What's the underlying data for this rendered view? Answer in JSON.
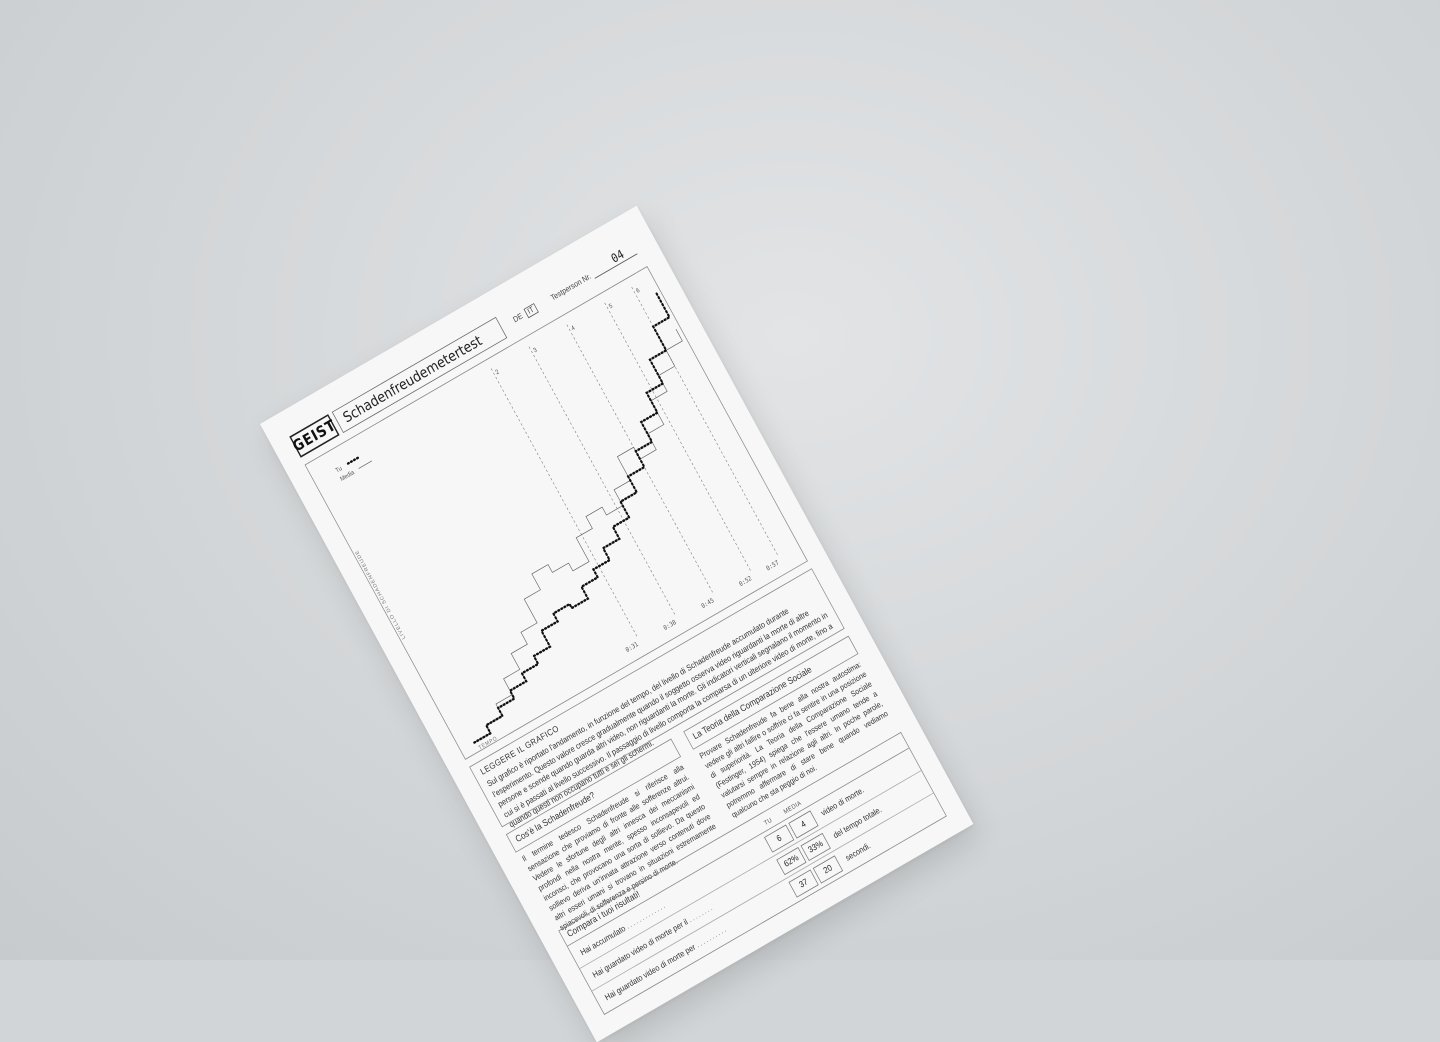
{
  "header": {
    "logo": "GEIST",
    "title": "Schadenfreudemetertest",
    "lang_de": "DE",
    "lang_it": "IT",
    "testperson_label": "Testperson Nr.",
    "testperson_number": "04"
  },
  "chart_data": {
    "type": "line",
    "ylabel": "LIVELLO DI SCHADENFREUDE",
    "xlabel": "TEMPO",
    "legend": [
      {
        "name": "Tu",
        "style": "dotted"
      },
      {
        "name": "Media",
        "style": "solid"
      }
    ],
    "level_markers": [
      {
        "level": "2",
        "time": "0:31"
      },
      {
        "level": "3",
        "time": "0:38"
      },
      {
        "level": "4",
        "time": "0:45"
      },
      {
        "level": "5",
        "time": "0:52"
      },
      {
        "level": "6",
        "time": "0:57"
      }
    ],
    "x": [
      0,
      3,
      6,
      9,
      12,
      15,
      18,
      21,
      24,
      27,
      30,
      33,
      36,
      39,
      42,
      45,
      48,
      51,
      54,
      57,
      60
    ],
    "series": [
      {
        "name": "Tu",
        "values": [
          0.0,
          0.2,
          0.4,
          0.6,
          0.8,
          1.0,
          1.4,
          1.6,
          1.5,
          1.8,
          2.0,
          2.3,
          2.6,
          3.0,
          3.4,
          3.8,
          4.3,
          4.8,
          5.4,
          6.0,
          6.6
        ]
      },
      {
        "name": "Media",
        "values": [
          0.0,
          0.2,
          0.5,
          0.9,
          1.3,
          1.6,
          2.2,
          2.6,
          2.4,
          2.2,
          2.8,
          3.1,
          2.9,
          3.3,
          3.9,
          3.6,
          4.0,
          4.6,
          5.0,
          5.4,
          5.7
        ]
      }
    ]
  },
  "reading": {
    "heading": "LEGGERE IL GRAFICO",
    "text": "Sul grafico è riportato l'andamento, in funzione del tempo, del livello di Schadenfreude accumulato durante l'esperimento. Questo valore cresce gradualmente quando il soggetto osserva video riguardanti la morte di altre persone e scende quando guarda altri video, non riguardanti la morte. Gli indicatori verticali segnalano il momento in cui si è passati al livello successivo. Il passaggio di livello comporta la comparsa di un ulteriore video di morte, fino a quando questi non occupano tutti e sei gli schermi."
  },
  "left_column": {
    "heading": "Cos'è la Schadenfreude?",
    "text": "Il termine tedesco Schadenfreude si riferisce alla sensazione che proviamo di fronte alle sofferenze altrui. Vedere le sfortune degli altri innesca dei meccanismi profondi nella nostra mente, spesso inconsapevoli ed inconsci, che provocano una sorta di sollievo. Da questo sollievo deriva un'innata attrazione verso contenuti dove altri esseri umani si trovano in situazioni estremamente spiacevoli, di sofferenza e persino di morte."
  },
  "right_column": {
    "heading": "La Teoria della Comparazione Sociale",
    "text": "Provare Schadenfreude fa bene alla nostra autostima: vedere gli altri fallire o soffrire ci fa sentire in una posizione di superiorità. La Teoria della Comparazione Sociale (Festinger, 1954) spiega che l'essere umano tende a valutarsi sempre in relazione agli altri. In poche parole, potremmo affermare di stare bene quando vediamo qualcuno che sta peggio di noi."
  },
  "results": {
    "heading": "Compara i tuoi risultati!",
    "col_tu": "TU",
    "col_media": "MEDIA",
    "rows": [
      {
        "label": "Hai accumulato",
        "dots": ".............",
        "tu": "6",
        "media": "4",
        "suffix": "video di morte."
      },
      {
        "label": "Hai guardato video di morte per il",
        "dots": "........",
        "tu": "62%",
        "media": "33%",
        "suffix": "del tempo totale."
      },
      {
        "label": "Hai guardato video di morte per",
        "dots": "..........",
        "tu": "37",
        "media": "20",
        "suffix": "secondi."
      }
    ]
  }
}
